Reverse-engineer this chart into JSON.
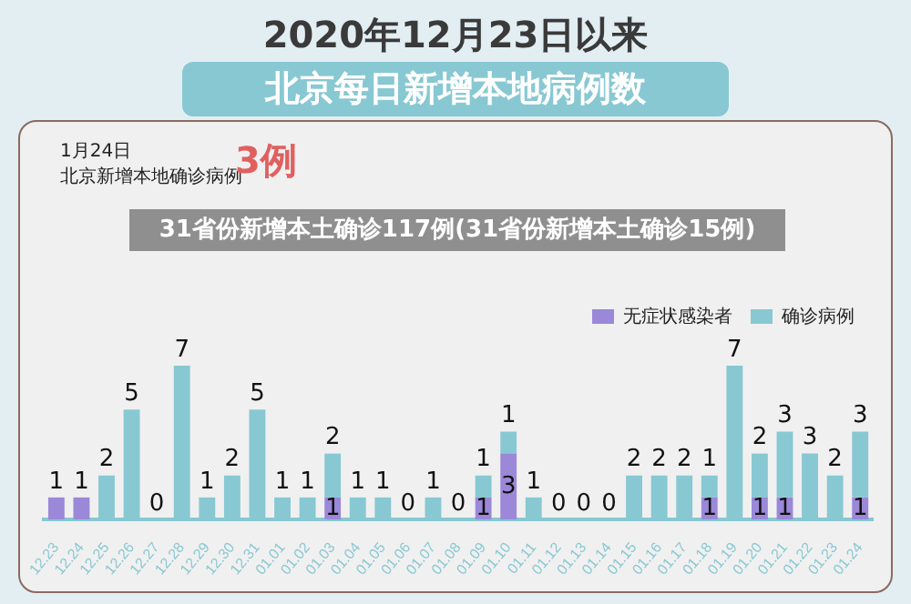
{
  "chart_data": {
    "type": "bar",
    "title": "2020年12月23日以来",
    "subtitle": "北京每日新增本地病例数",
    "annotations": [
      "1月24日",
      "北京新增本地确诊病例",
      "3例",
      "31省份新增本土确诊117例(31省份新增本土确诊15例)"
    ],
    "categories": [
      "12.23",
      "12.24",
      "12.25",
      "12.26",
      "12.27",
      "12.28",
      "12.29",
      "12.30",
      "12.31",
      "01.01",
      "01.02",
      "01.03",
      "01.04",
      "01.05",
      "01.06",
      "01.07",
      "01.08",
      "01.09",
      "01.10",
      "01.11",
      "01.12",
      "01.13",
      "01.14",
      "01.15",
      "01.16",
      "01.17",
      "01.18",
      "01.19",
      "01.20",
      "01.21",
      "01.22",
      "01.23",
      "01.24"
    ],
    "stacked": true,
    "legend": "top",
    "tick_labels": "x",
    "grid": false,
    "series": [
      {
        "name": "无症状感染者",
        "color": "#9b88d8",
        "values": [
          1,
          1,
          0,
          0,
          0,
          0,
          0,
          0,
          0,
          0,
          0,
          1,
          0,
          0,
          0,
          0,
          0,
          1,
          3,
          0,
          0,
          0,
          0,
          0,
          0,
          0,
          1,
          0,
          1,
          1,
          0,
          0,
          1
        ],
        "value_labels": [
          "1",
          "1",
          null,
          null,
          null,
          null,
          null,
          null,
          null,
          null,
          null,
          "1",
          null,
          null,
          null,
          null,
          null,
          "1",
          "3",
          null,
          null,
          null,
          null,
          null,
          null,
          null,
          "1",
          null,
          "1",
          "1",
          null,
          null,
          "1"
        ]
      },
      {
        "name": "确诊病例",
        "color": "#88c8d2",
        "values": [
          0,
          0,
          2,
          5,
          0,
          7,
          1,
          2,
          5,
          1,
          1,
          2,
          1,
          1,
          0,
          1,
          0,
          1,
          1,
          1,
          0,
          0,
          0,
          2,
          2,
          2,
          1,
          7,
          2,
          3,
          3,
          2,
          3
        ],
        "value_labels": [
          null,
          null,
          "2",
          "5",
          "0",
          "7",
          "1",
          "2",
          "5",
          "1",
          "1",
          "2",
          "1",
          "1",
          "0",
          "1",
          "0",
          "1",
          "1",
          "1",
          "0",
          "0",
          "0",
          "2",
          "2",
          "2",
          "1",
          "7",
          "2",
          "3",
          "3",
          "2",
          "3"
        ]
      }
    ]
  }
}
